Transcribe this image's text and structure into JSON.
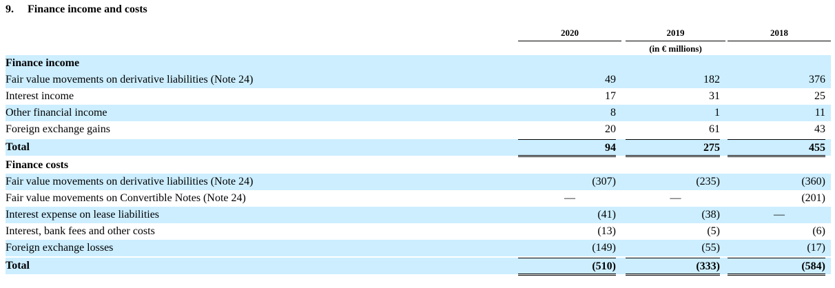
{
  "heading": {
    "number": "9.",
    "title": "Finance income and costs"
  },
  "columns": {
    "years": [
      "2020",
      "2019",
      "2018"
    ],
    "unit": "(in € millions)"
  },
  "finance_income": {
    "label": "Finance income",
    "rows": [
      {
        "label": "Fair value movements on derivative liabilities (Note 24)",
        "v": [
          "49",
          "182",
          "376"
        ]
      },
      {
        "label": "Interest income",
        "v": [
          "17",
          "31",
          "25"
        ]
      },
      {
        "label": "Other financial income",
        "v": [
          "8",
          "1",
          "11"
        ]
      },
      {
        "label": "Foreign exchange gains",
        "v": [
          "20",
          "61",
          "43"
        ]
      }
    ],
    "total": {
      "label": "Total",
      "v": [
        "94",
        "275",
        "455"
      ]
    }
  },
  "finance_costs": {
    "label": "Finance costs",
    "rows": [
      {
        "label": "Fair value movements on derivative liabilities (Note 24)",
        "v": [
          "(307)",
          "(235)",
          "(360)"
        ]
      },
      {
        "label": "Fair value movements on Convertible Notes (Note 24)",
        "v": [
          "—",
          "—",
          "(201)"
        ]
      },
      {
        "label": "Interest expense on lease liabilities",
        "v": [
          "(41)",
          "(38)",
          "—"
        ]
      },
      {
        "label": "Interest, bank fees and other costs",
        "v": [
          "(13)",
          "(5)",
          "(6)"
        ]
      },
      {
        "label": "Foreign exchange losses",
        "v": [
          "(149)",
          "(55)",
          "(17)"
        ]
      }
    ],
    "total": {
      "label": "Total",
      "v": [
        "(510)",
        "(333)",
        "(584)"
      ]
    }
  }
}
